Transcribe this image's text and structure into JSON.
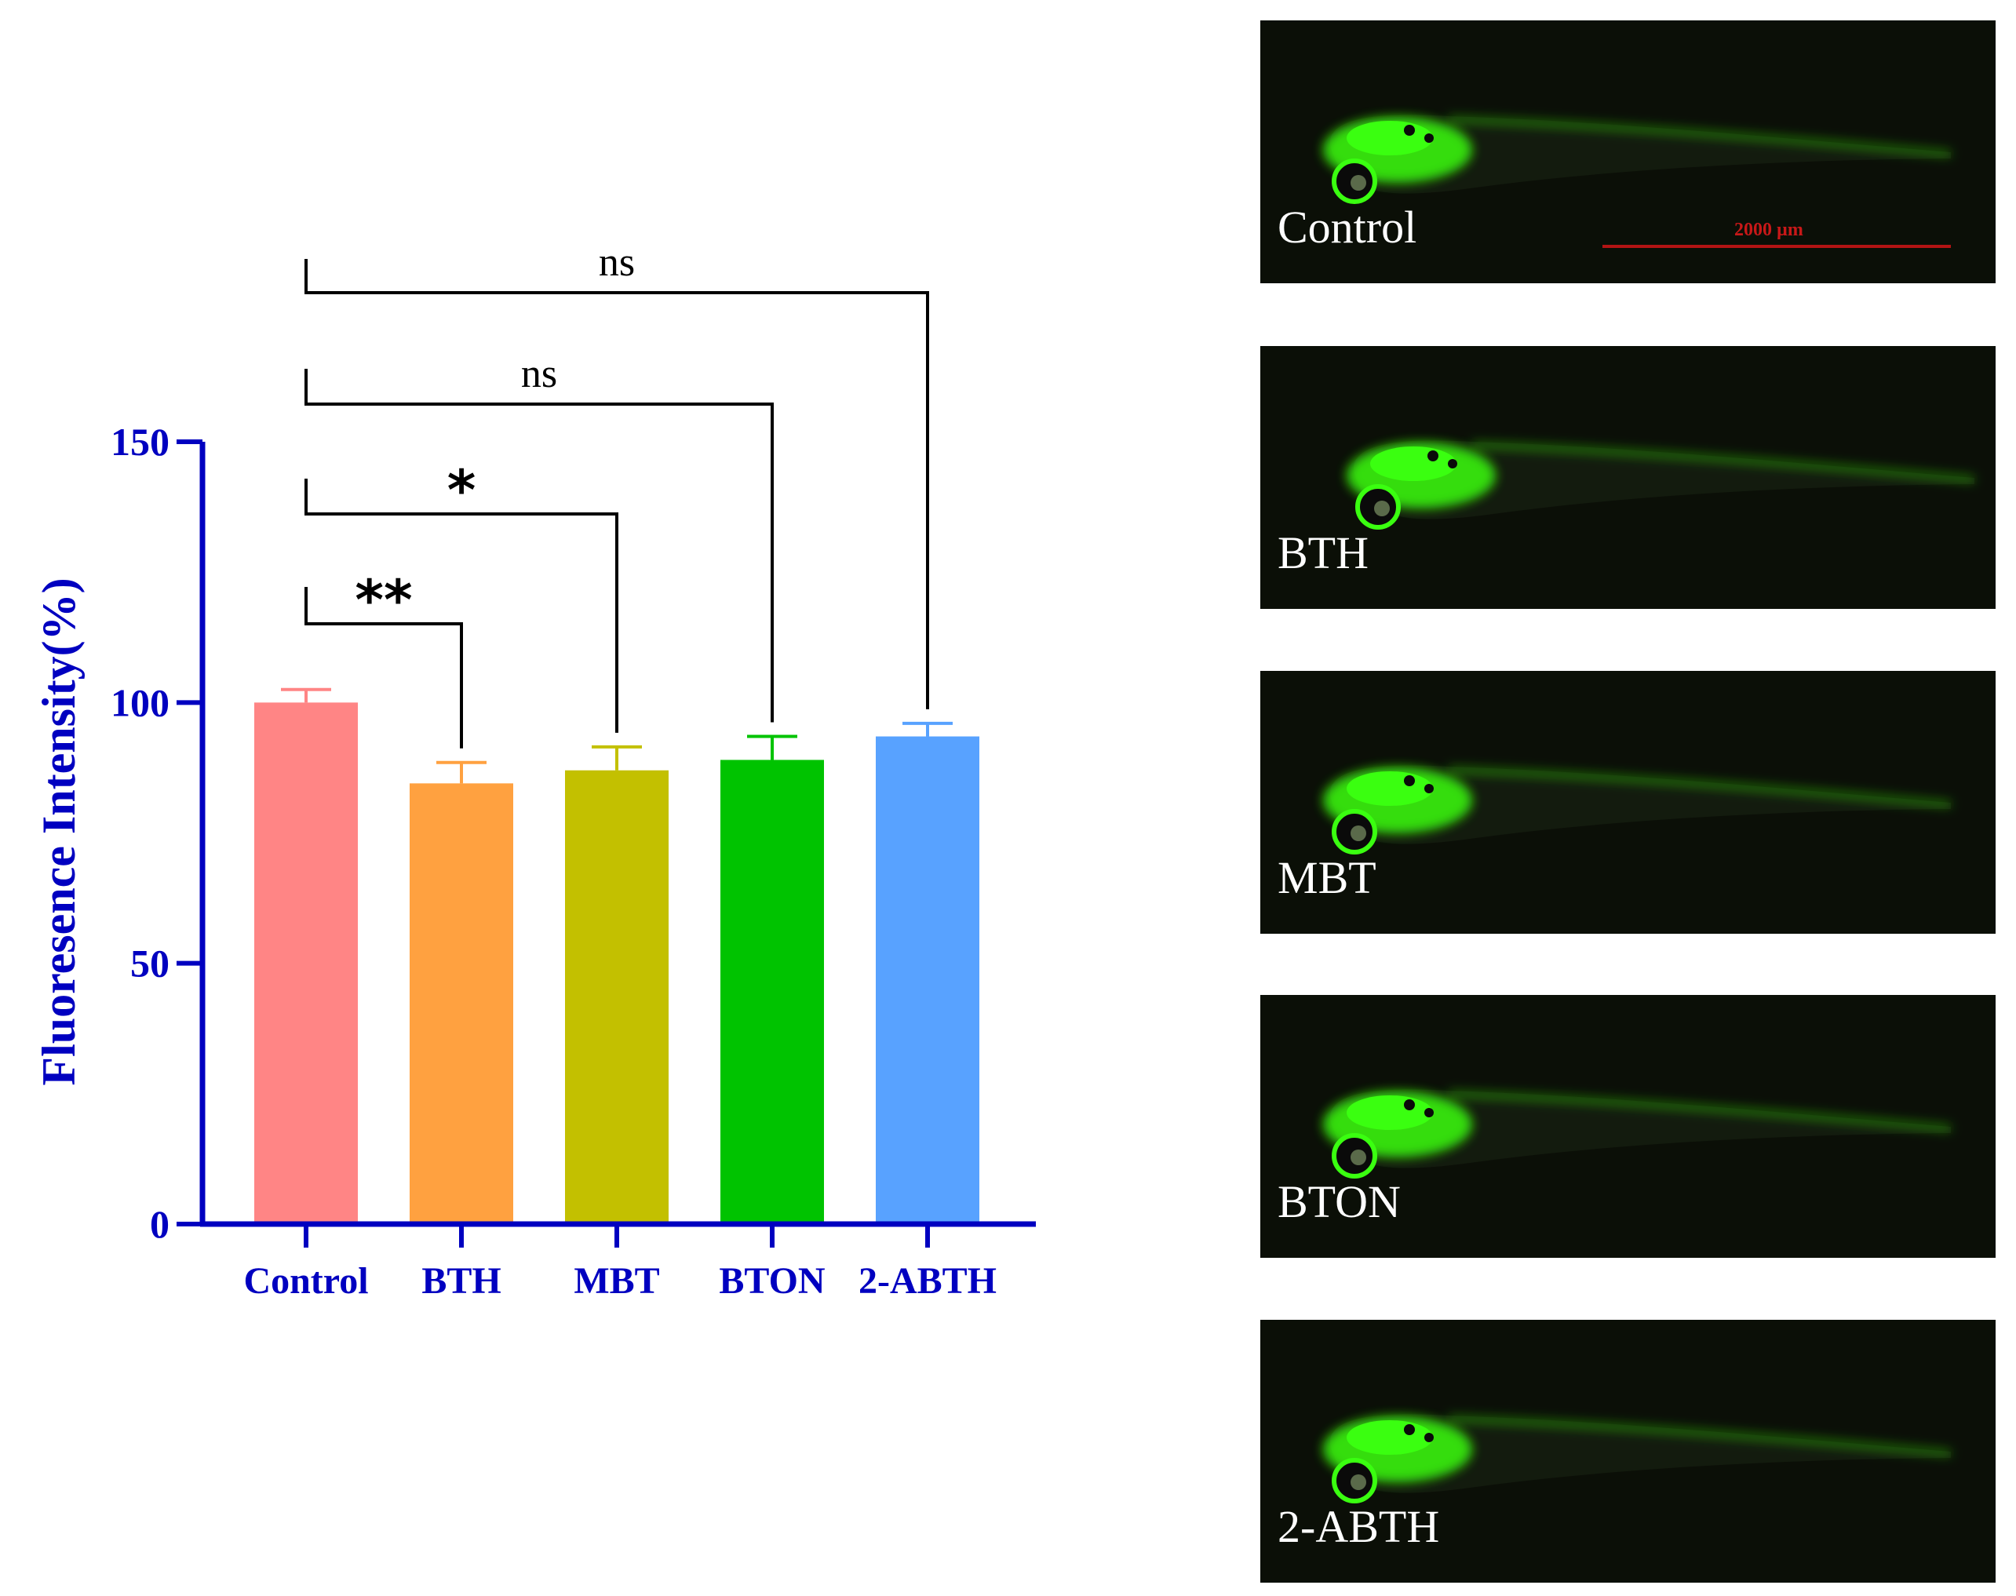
{
  "chart_data": {
    "type": "bar",
    "ylabel": "Fluoresence Intensity(%)",
    "xlabel": "",
    "ylim": [
      0,
      150
    ],
    "yticks": [
      0,
      50,
      100,
      150
    ],
    "categories": [
      "Control",
      "BTH",
      "MBT",
      "BTON",
      "2-ABTH"
    ],
    "values": [
      100,
      84.5,
      87,
      89,
      93.5
    ],
    "errors": [
      2.5,
      4,
      4.5,
      4.5,
      2.5
    ],
    "bar_colors": [
      "#ff8585",
      "#ffa140",
      "#c3c000",
      "#00c300",
      "#58a2ff"
    ],
    "axis_color": "#0000c0",
    "comparisons": [
      {
        "from": "Control",
        "to": "BTH",
        "label": "**"
      },
      {
        "from": "Control",
        "to": "MBT",
        "label": "*"
      },
      {
        "from": "Control",
        "to": "BTON",
        "label": "ns"
      },
      {
        "from": "Control",
        "to": "2-ABTH",
        "label": "ns"
      }
    ]
  },
  "images": {
    "panels": [
      {
        "label": "Control"
      },
      {
        "label": "BTH"
      },
      {
        "label": "MBT"
      },
      {
        "label": "BTON"
      },
      {
        "label": "2-ABTH"
      }
    ],
    "scale_bar_label": "2000 µm",
    "fluorescence_color": "#3aff10"
  }
}
